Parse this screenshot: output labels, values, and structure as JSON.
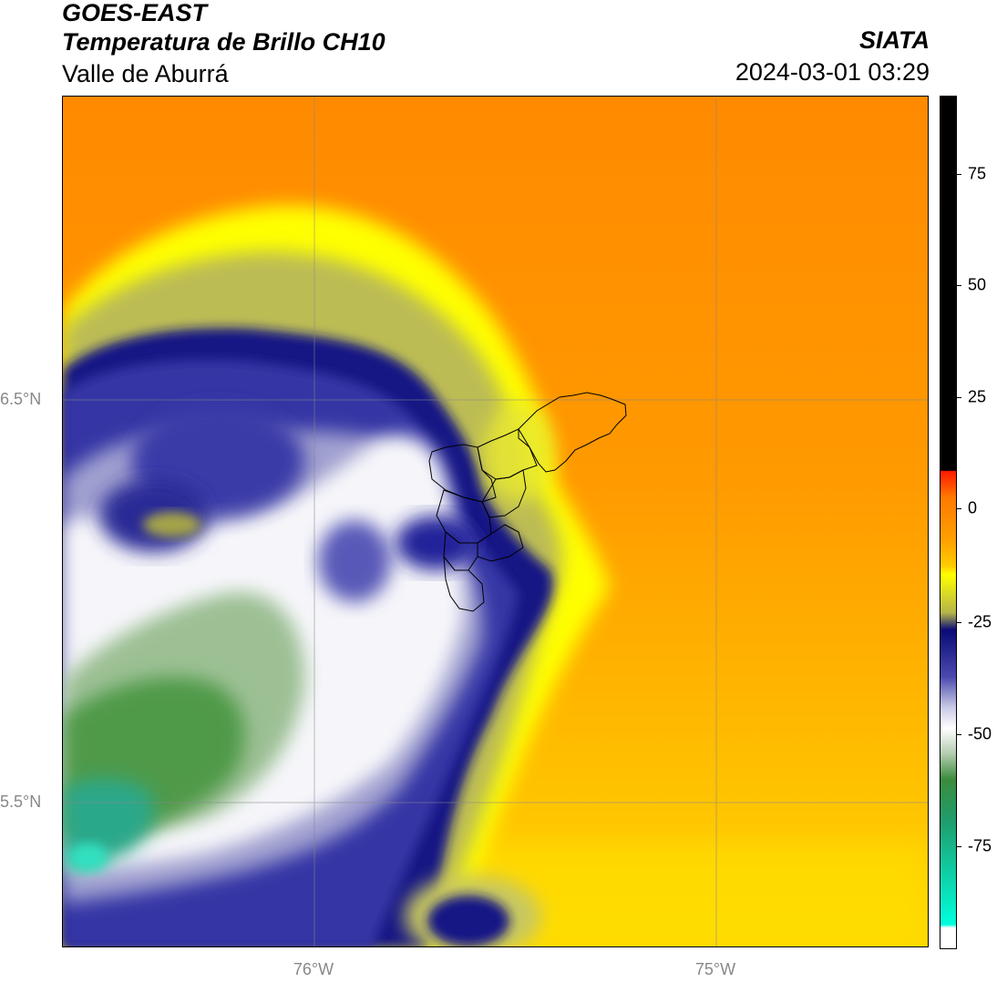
{
  "header": {
    "satellite": "GOES-EAST",
    "product": "Temperatura de Brillo CH10",
    "region": "Valle de Aburrá",
    "organization": "SIATA",
    "timestamp": "2024-03-01 03:29"
  },
  "map": {
    "lat_labels": [
      "6.5°N",
      "5.5°N"
    ],
    "lon_labels": [
      "76°W",
      "75°W"
    ],
    "gridlines": true
  },
  "colorbar": {
    "tick_labels": [
      "75",
      "50",
      "25",
      "0",
      "-25",
      "-50",
      "-75"
    ],
    "colors": {
      "black": "#000000",
      "red": "#ff2000",
      "orange": "#ff8c00",
      "yellow": "#ffff00",
      "olive": "#c8c864",
      "navy": "#0a0a78",
      "white": "#ffffff",
      "green": "#3c8c3c",
      "cyan": "#00ffdc"
    }
  }
}
